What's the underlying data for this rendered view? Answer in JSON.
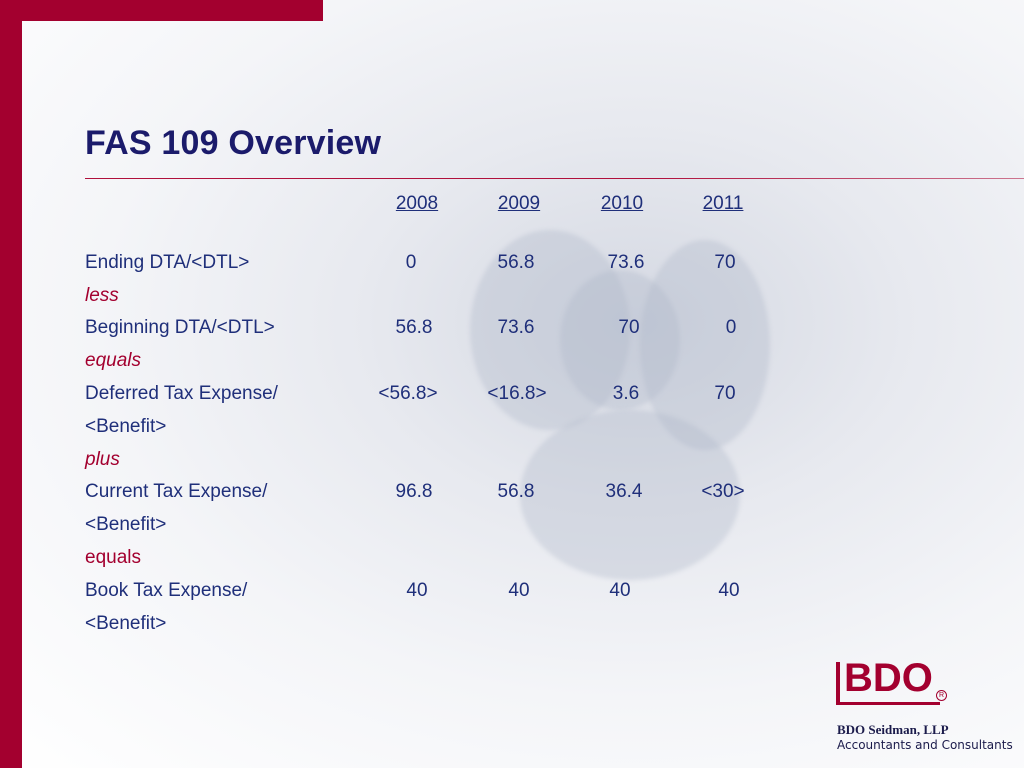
{
  "slide": {
    "title": "FAS 109 Overview"
  },
  "table": {
    "years": [
      "2008",
      "2009",
      "2010",
      "2011"
    ],
    "rows": {
      "ending_dta": {
        "label": "Ending DTA/<DTL>",
        "values": [
          "0",
          "56.8",
          "73.6",
          "70"
        ]
      },
      "less": "less",
      "beginning_dta": {
        "label": "Beginning DTA/<DTL>",
        "values": [
          "56.8",
          "73.6",
          "70",
          "0"
        ]
      },
      "equals1": "equals",
      "deferred": {
        "label": "Deferred Tax Expense/",
        "label2": "<Benefit>",
        "values": [
          "<56.8>",
          "<16.8>",
          "3.6",
          "70"
        ]
      },
      "plus": "plus",
      "current": {
        "label": "Current Tax Expense/",
        "label2": "<Benefit>",
        "values": [
          "96.8",
          "56.8",
          "36.4",
          "<30>"
        ]
      },
      "equals2": "equals",
      "book": {
        "label": "Book Tax Expense/",
        "label2": "<Benefit>",
        "values": [
          "40",
          "40",
          "40",
          "40"
        ]
      }
    }
  },
  "branding": {
    "logo": "BDO",
    "registered": "R",
    "company": "BDO Seidman, LLP",
    "tagline": "Accountants and Consultants"
  },
  "colors": {
    "accent": "#a3002f",
    "title": "#1b1b6b",
    "text": "#1f2f7a"
  }
}
